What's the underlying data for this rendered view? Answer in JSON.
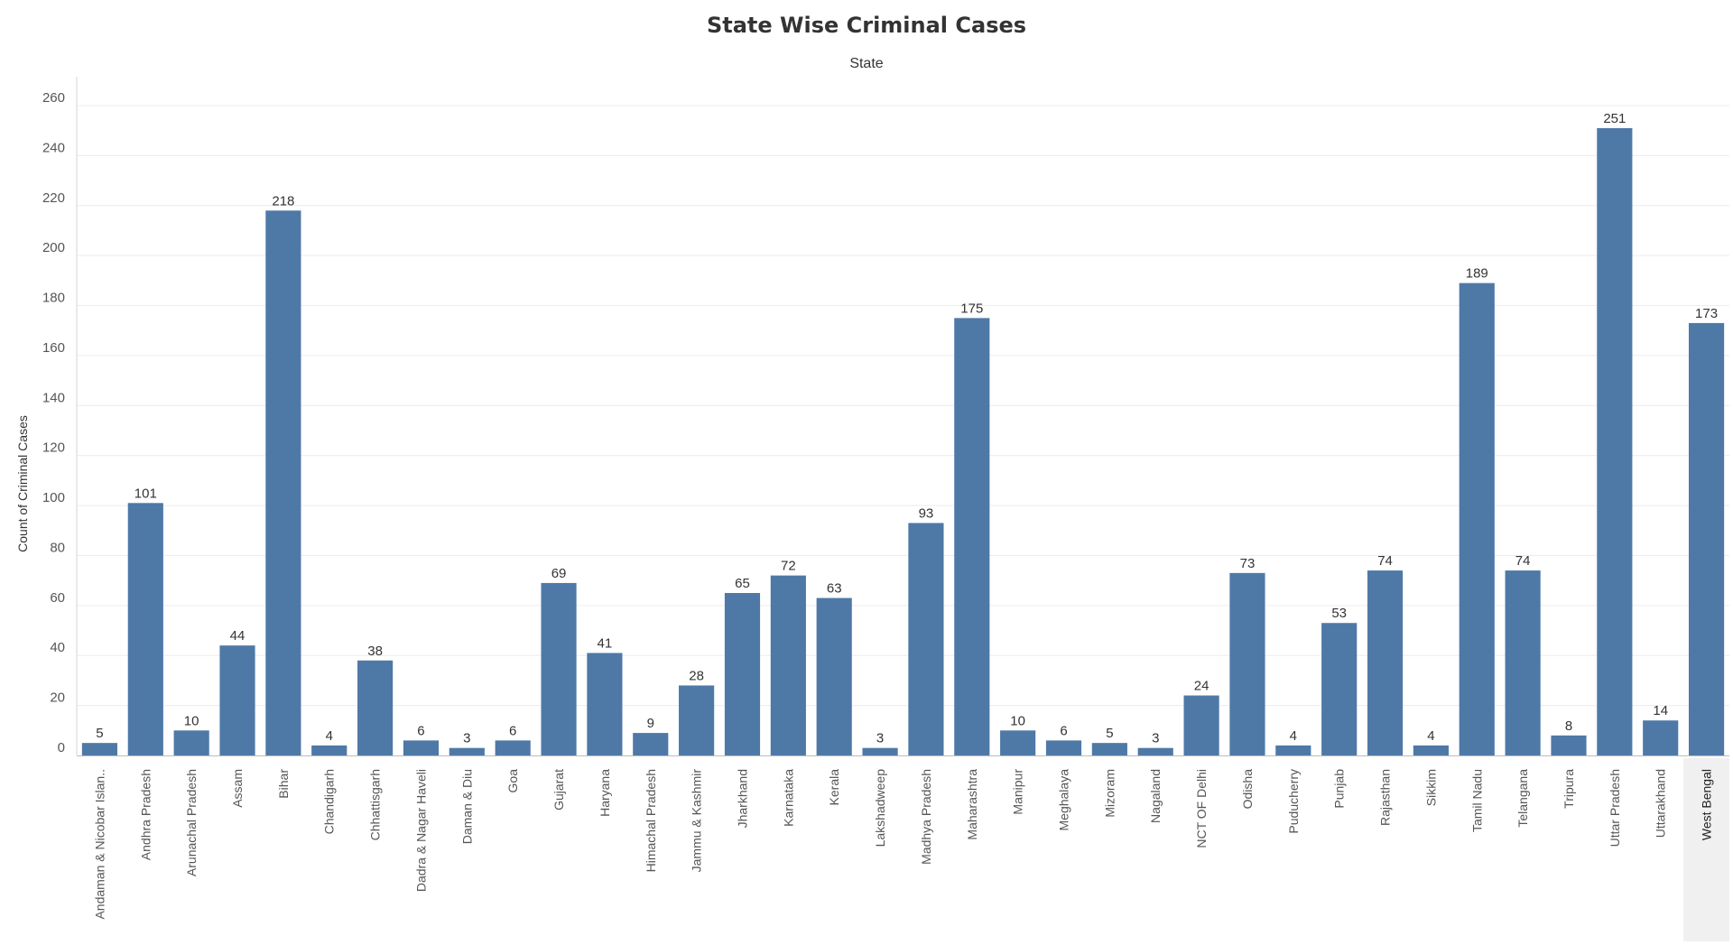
{
  "chart_data": {
    "type": "bar",
    "title": "State Wise Criminal Cases",
    "subtitle": "State",
    "ylabel": "Count of Criminal Cases",
    "xlabel": "",
    "ylim": [
      0,
      260
    ],
    "yticks": [
      0,
      20,
      40,
      60,
      80,
      100,
      120,
      140,
      160,
      180,
      200,
      220,
      240,
      260
    ],
    "grid": true,
    "bar_color": "#4e79a7",
    "highlight_color": "#f0f0f0",
    "highlighted_category": "West Bengal",
    "categories": [
      "Andaman & Nicobar Islan..",
      "Andhra Pradesh",
      "Arunachal Pradesh",
      "Assam",
      "Bihar",
      "Chandigarh",
      "Chhattisgarh",
      "Dadra & Nagar Haveli",
      "Daman & Diu",
      "Goa",
      "Gujarat",
      "Haryana",
      "Himachal Pradesh",
      "Jammu & Kashmir",
      "Jharkhand",
      "Karnataka",
      "Kerala",
      "Lakshadweep",
      "Madhya Pradesh",
      "Maharashtra",
      "Manipur",
      "Meghalaya",
      "Mizoram",
      "Nagaland",
      "NCT OF Delhi",
      "Odisha",
      "Puducherry",
      "Punjab",
      "Rajasthan",
      "Sikkim",
      "Tamil Nadu",
      "Telangana",
      "Tripura",
      "Uttar Pradesh",
      "Uttarakhand",
      "West Bengal"
    ],
    "values": [
      5,
      101,
      10,
      44,
      218,
      4,
      38,
      6,
      3,
      6,
      69,
      41,
      9,
      28,
      65,
      72,
      63,
      3,
      93,
      175,
      10,
      6,
      5,
      3,
      24,
      73,
      4,
      53,
      74,
      4,
      189,
      74,
      8,
      251,
      14,
      173
    ]
  }
}
